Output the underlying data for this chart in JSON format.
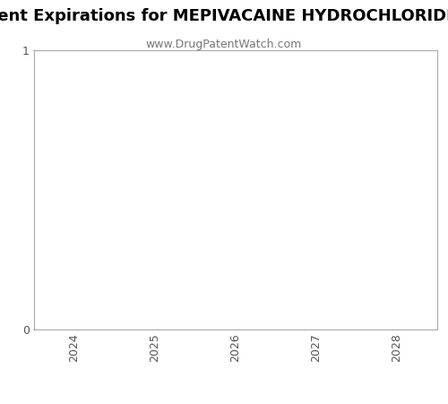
{
  "title": "Patent Expirations for MEPIVACAINE HYDROCHLORIDE W",
  "subtitle": "www.DrugPatentWatch.com",
  "x_ticks": [
    2024,
    2025,
    2026,
    2027,
    2028
  ],
  "y_ticks": [
    0,
    1
  ],
  "ylim": [
    0,
    1
  ],
  "xlim": [
    2023.5,
    2028.5
  ],
  "background_color": "#ffffff",
  "plot_bg_color": "#ffffff",
  "spine_color": "#aaaaaa",
  "title_fontsize": 13,
  "subtitle_fontsize": 9,
  "tick_fontsize": 9,
  "title_color": "#000000",
  "subtitle_color": "#777777"
}
